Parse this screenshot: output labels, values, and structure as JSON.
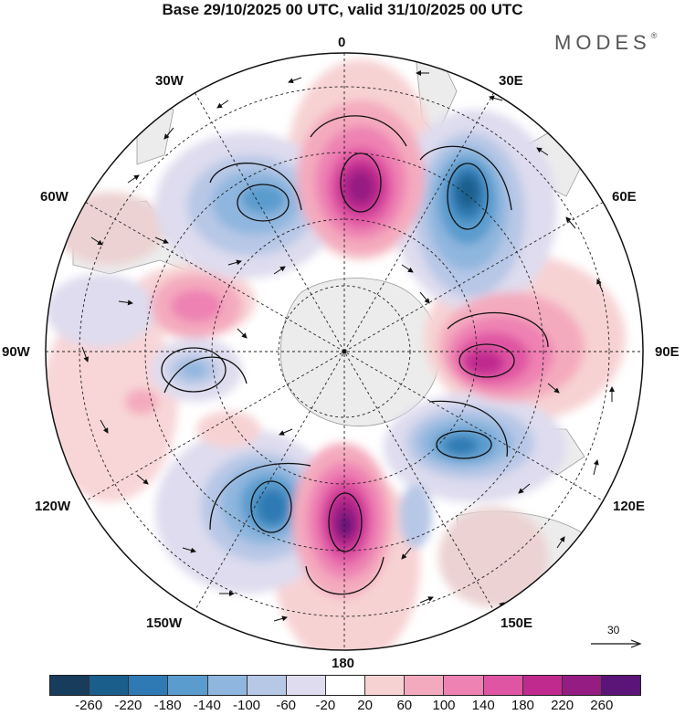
{
  "title": "Base 29/10/2025 00 UTC, valid 31/10/2025 00 UTC",
  "brand": "MODES",
  "brand_mark": "®",
  "longitude_labels": {
    "lon_0": "0",
    "lon_30e": "30E",
    "lon_60e": "60E",
    "lon_90e": "90E",
    "lon_120e": "120E",
    "lon_150e": "150E",
    "lon_180": "180",
    "lon_150w": "150W",
    "lon_120w": "120W",
    "lon_90w": "90W",
    "lon_60w": "60W",
    "lon_30w": "30W"
  },
  "vector_scale": {
    "label": "30"
  },
  "colorbar": {
    "ticks": [
      "-260",
      "-220",
      "-180",
      "-140",
      "-100",
      "-60",
      "-20",
      "20",
      "60",
      "100",
      "140",
      "180",
      "220",
      "260"
    ],
    "colors": [
      "#173c5c",
      "#1a5e8c",
      "#2f7ab4",
      "#5a9cce",
      "#8fb6de",
      "#b7c7e6",
      "#dedcee",
      "#ffffff",
      "#f7d2d3",
      "#f4aabe",
      "#ee82b3",
      "#e055a3",
      "#c02a8f",
      "#951c82",
      "#5b1478"
    ]
  },
  "anomaly_centers": [
    {
      "sign": "positive",
      "value": 220,
      "lon": "0"
    },
    {
      "sign": "negative",
      "value": -220,
      "lon": "30E"
    },
    {
      "sign": "positive",
      "value": 220,
      "lon": "90E"
    },
    {
      "sign": "negative",
      "value": -180,
      "lon": "120E"
    },
    {
      "sign": "positive",
      "value": 260,
      "lon": "180"
    },
    {
      "sign": "negative",
      "value": -220,
      "lon": "150W"
    },
    {
      "sign": "negative",
      "value": -100,
      "lon": "90W"
    },
    {
      "sign": "positive",
      "value": 100,
      "lon": "60W"
    },
    {
      "sign": "negative",
      "value": -140,
      "lon": "30W"
    }
  ]
}
